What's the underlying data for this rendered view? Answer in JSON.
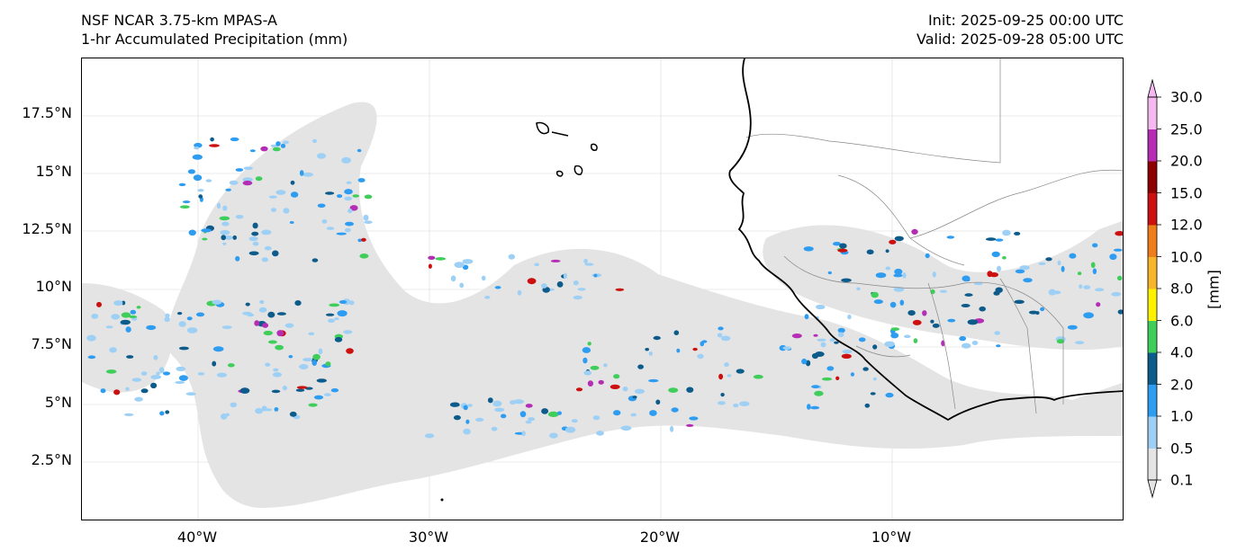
{
  "header": {
    "model": "NSF NCAR 3.75-km MPAS-A",
    "field": "1-hr Accumulated Precipitation (mm)",
    "init": "Init: 2025-09-25 00:00 UTC",
    "valid": "Valid: 2025-09-28 05:00 UTC"
  },
  "map": {
    "lat_labels": [
      "17.5°N",
      "15°N",
      "12.5°N",
      "10°N",
      "7.5°N",
      "5°N",
      "2.5°N"
    ],
    "lon_labels": [
      "40°W",
      "30°W",
      "20°W",
      "10°W"
    ],
    "gridlines": true
  },
  "colorbar": {
    "units": "[mm]",
    "levels": [
      "0.1",
      "0.5",
      "1.0",
      "2.0",
      "4.0",
      "6.0",
      "8.0",
      "10.0",
      "12.0",
      "15.0",
      "20.0",
      "25.0",
      "30.0"
    ],
    "colors": [
      "#e4e4e4",
      "#9ed0f5",
      "#2e9cf0",
      "#0c5b8a",
      "#3fce5a",
      "#fff200",
      "#f6b52a",
      "#ee7d1b",
      "#cc0f0f",
      "#8e0000",
      "#b42db4",
      "#f6b8f0"
    ],
    "extend": "both"
  }
}
